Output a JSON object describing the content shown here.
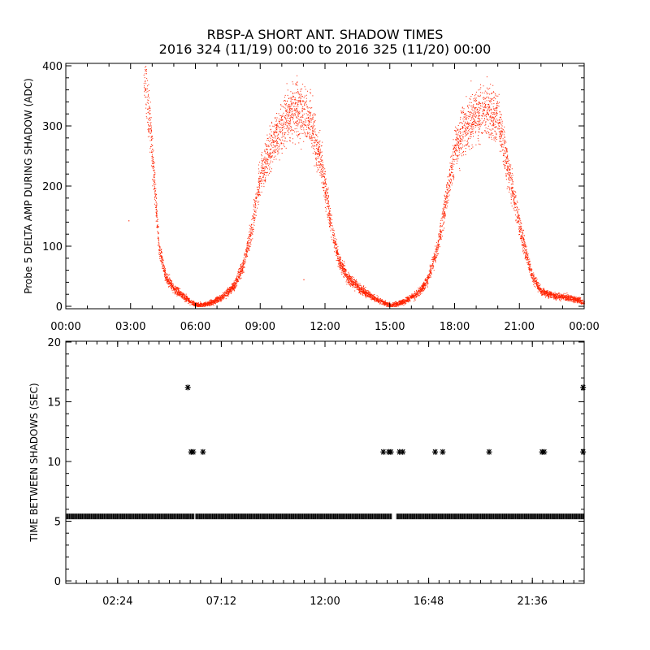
{
  "title": "RBSP-A SHORT ANT. SHADOW TIMES",
  "subtitle": "2016 324 (11/19) 00:00 to 2016 325 (11/20) 00:00",
  "colors": {
    "series": "#ff2200",
    "axis": "#000000"
  },
  "chart_data": [
    {
      "type": "scatter",
      "ylabel": "Probe 5 DELTA AMP DURING SHADOW (ADC)",
      "xlim": [
        "00:00",
        "24:00"
      ],
      "ylim": [
        0,
        400
      ],
      "x_ticks": [
        "00:00",
        "03:00",
        "06:00",
        "09:00",
        "12:00",
        "15:00",
        "18:00",
        "21:00",
        "00:00"
      ],
      "y_ticks": [
        "0",
        "100",
        "200",
        "300",
        "400"
      ],
      "marker_color": "#ff2200",
      "envelope_note_hours": [
        [
          3.6,
          400
        ],
        [
          3.9,
          300
        ],
        [
          4.1,
          200
        ],
        [
          4.3,
          100
        ],
        [
          4.6,
          50
        ],
        [
          5.0,
          30
        ],
        [
          5.5,
          15
        ],
        [
          5.9,
          5
        ],
        [
          6.1,
          2
        ],
        [
          6.6,
          5
        ],
        [
          7.2,
          15
        ],
        [
          7.8,
          35
        ],
        [
          8.2,
          70
        ],
        [
          8.6,
          130
        ],
        [
          8.9,
          200
        ],
        [
          9.3,
          250
        ],
        [
          9.8,
          290
        ],
        [
          10.3,
          320
        ],
        [
          10.8,
          330
        ],
        [
          11.3,
          310
        ],
        [
          11.8,
          240
        ],
        [
          12.2,
          150
        ],
        [
          12.6,
          80
        ],
        [
          13.0,
          50
        ],
        [
          13.6,
          30
        ],
        [
          14.2,
          15
        ],
        [
          14.8,
          5
        ],
        [
          15.1,
          2
        ],
        [
          15.6,
          8
        ],
        [
          16.2,
          20
        ],
        [
          16.7,
          40
        ],
        [
          17.2,
          100
        ],
        [
          17.6,
          180
        ],
        [
          18.0,
          260
        ],
        [
          18.5,
          300
        ],
        [
          19.0,
          320
        ],
        [
          19.5,
          330
        ],
        [
          20.0,
          310
        ],
        [
          20.4,
          240
        ],
        [
          20.8,
          170
        ],
        [
          21.2,
          100
        ],
        [
          21.6,
          50
        ],
        [
          22.0,
          25
        ],
        [
          22.6,
          18
        ],
        [
          23.2,
          15
        ],
        [
          23.8,
          10
        ],
        [
          24.0,
          5
        ]
      ],
      "outliers": [
        [
          2.9,
          143
        ],
        [
          11.0,
          45
        ]
      ]
    },
    {
      "type": "scatter",
      "ylabel": "TIME BETWEEN SHADOWS (SEC)",
      "xlim": [
        "00:00",
        "24:00"
      ],
      "ylim": [
        0,
        20
      ],
      "x_ticks": [
        "02:24",
        "07:12",
        "12:00",
        "16:48",
        "21:36"
      ],
      "y_ticks": [
        "0",
        "5",
        "10",
        "15",
        "20"
      ],
      "marker": "*",
      "marker_color": "#000000",
      "baseline_value": 5.4,
      "baseline_gaps_hours": [
        [
          5.95,
          6.0
        ],
        [
          15.1,
          15.3
        ]
      ],
      "points": [
        [
          5.65,
          16.2
        ],
        [
          5.8,
          10.8
        ],
        [
          5.9,
          10.8
        ],
        [
          6.35,
          10.8
        ],
        [
          14.7,
          10.8
        ],
        [
          14.95,
          10.8
        ],
        [
          15.05,
          10.8
        ],
        [
          15.45,
          10.8
        ],
        [
          15.6,
          10.8
        ],
        [
          17.1,
          10.8
        ],
        [
          17.45,
          10.8
        ],
        [
          19.6,
          10.8
        ],
        [
          22.05,
          10.8
        ],
        [
          22.15,
          10.8
        ],
        [
          23.95,
          10.8
        ],
        [
          23.95,
          16.2
        ]
      ]
    }
  ]
}
